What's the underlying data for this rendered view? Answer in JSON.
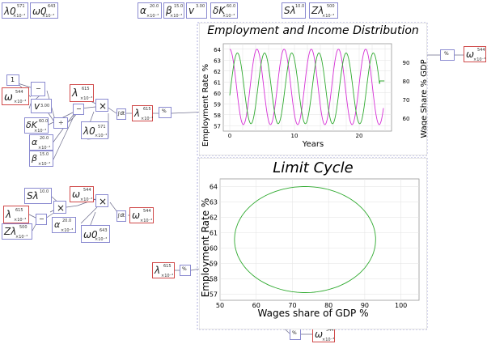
{
  "top_vars": [
    {
      "sym": "λ0",
      "val": "571",
      "mult": "×10⁻³"
    },
    {
      "sym": "ω0",
      "val": "643",
      "mult": "×10⁻³"
    },
    {
      "sym": "α",
      "val": "20.0",
      "mult": "×10⁻³"
    },
    {
      "sym": "β",
      "val": "15.0",
      "mult": "×10⁻³"
    },
    {
      "sym": "v",
      "val": "3.00",
      "mult": ""
    },
    {
      "sym": "δK",
      "val": "60.0",
      "mult": "×10⁻³"
    },
    {
      "sym": "Sλ",
      "val": "10.0",
      "mult": ""
    },
    {
      "sym": "Zλ",
      "val": "500",
      "mult": "×10⁻³"
    }
  ],
  "diagram": {
    "const_one": "1",
    "omega_val": "544",
    "lambda_val": "615",
    "mult": "×10⁻³",
    "v_val": "3.00",
    "dk_val": "60.0",
    "alpha_val": "20.0",
    "beta_val": "15.0",
    "l0_val": "571",
    "w0_val": "643",
    "s_val": "10.0",
    "z_val": "500",
    "integ": "∫dt",
    "pct": "%",
    "minus": "−",
    "divide": "÷",
    "times": "×"
  },
  "chart_data": [
    {
      "type": "line",
      "title": "Employment and Income Distribution",
      "xlabel": "Years",
      "ylabel": "Employment Rate %",
      "y2label": "Wage Share % GDP",
      "xlim": [
        -1,
        25
      ],
      "ylim": [
        56.5,
        64.5
      ],
      "y2lim": [
        53,
        100
      ],
      "xticks": [
        0,
        10,
        20
      ],
      "yticks": [
        57,
        58,
        59,
        60,
        61,
        62,
        63,
        64
      ],
      "y2ticks": [
        60,
        70,
        80,
        90
      ],
      "series": [
        {
          "name": "",
          "axis": "left",
          "color": "#d62fd6",
          "period": 4.2,
          "min": 57.1,
          "max": 64.0,
          "x_end": 23.8
        },
        {
          "name": "",
          "axis": "right",
          "color": "#2faa2f",
          "period": 4.2,
          "min": 57,
          "max": 95,
          "x_end": 23.2,
          "last_value": 80
        }
      ]
    },
    {
      "type": "line",
      "title": "Limit Cycle",
      "xlabel": "Wages share of GDP %",
      "ylabel": "Employment Rate %",
      "xlim": [
        50,
        105
      ],
      "ylim": [
        56.6,
        64.5
      ],
      "xticks": [
        50,
        60,
        70,
        80,
        90,
        100
      ],
      "yticks": [
        57,
        58,
        59,
        60,
        61,
        62,
        63,
        64
      ],
      "series": [
        {
          "name": "",
          "color": "#2faa2f",
          "shape": "closed-orbit",
          "x_range": [
            54,
            93
          ],
          "y_range": [
            57.1,
            64.0
          ]
        }
      ]
    }
  ]
}
